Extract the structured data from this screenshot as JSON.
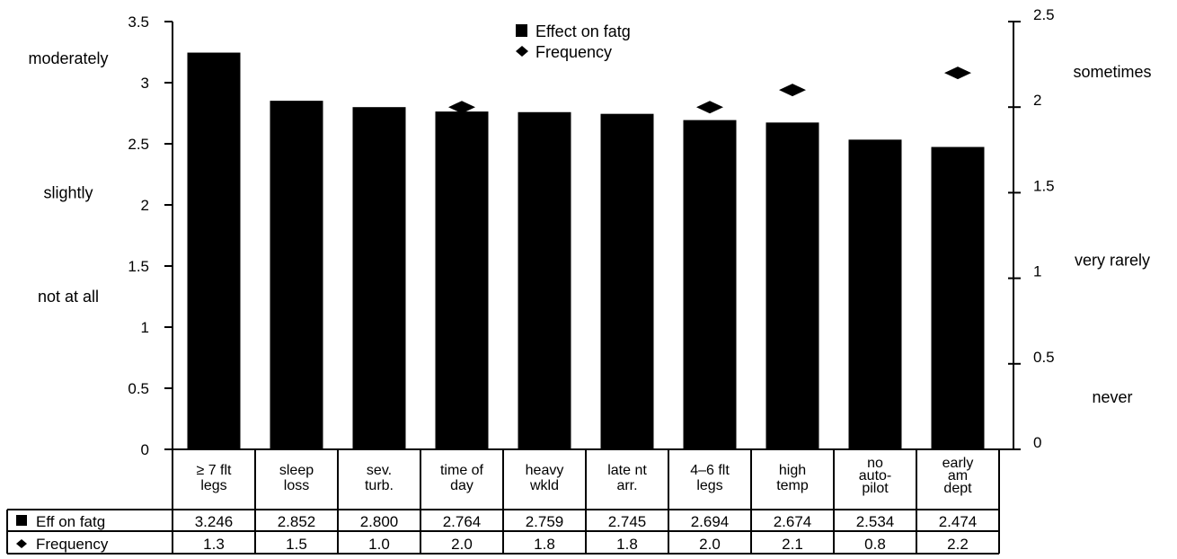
{
  "chart_data": {
    "type": "bar",
    "title": "",
    "categories": [
      [
        "≥ 7 flt",
        "legs"
      ],
      [
        "sleep",
        "loss"
      ],
      [
        "sev.",
        "turb."
      ],
      [
        "time of",
        "day"
      ],
      [
        "heavy",
        "wkld"
      ],
      [
        "late nt",
        "arr."
      ],
      [
        "4–6 flt",
        "legs"
      ],
      [
        "high",
        "temp"
      ],
      [
        "no",
        "auto-",
        "pilot"
      ],
      [
        "early",
        "am",
        "dept"
      ]
    ],
    "series": [
      {
        "name": "Effect on fatg",
        "table_label": "Eff on fatg",
        "marker": "bar",
        "axis": "left",
        "values": [
          3.246,
          2.852,
          2.8,
          2.764,
          2.759,
          2.745,
          2.694,
          2.674,
          2.534,
          2.474
        ],
        "table_values": [
          "3.246",
          "2.852",
          "2.800",
          "2.764",
          "2.759",
          "2.745",
          "2.694",
          "2.674",
          "2.534",
          "2.474"
        ]
      },
      {
        "name": "Frequency",
        "table_label": "Frequency",
        "marker": "diamond",
        "axis": "right",
        "values": [
          1.3,
          1.5,
          1.0,
          2.0,
          1.8,
          1.8,
          2.0,
          2.1,
          0.8,
          2.2
        ],
        "table_values": [
          "1.3",
          "1.5",
          "1.0",
          "2.0",
          "1.8",
          "1.8",
          "2.0",
          "2.1",
          "0.8",
          "2.2"
        ]
      }
    ],
    "left_axis": {
      "ylim": [
        0,
        3.5
      ],
      "ticks": [
        "0",
        "0.5",
        "1",
        "1.5",
        "2",
        "2.5",
        "3",
        "3.5"
      ],
      "qualitative_labels": [
        {
          "text": "not at all",
          "value": 1.25
        },
        {
          "text": "slightly",
          "value": 2.1
        },
        {
          "text": "moderately",
          "value": 3.2
        }
      ]
    },
    "right_axis": {
      "ylim": [
        0,
        2.5
      ],
      "ticks": [
        "0",
        "0.5",
        "1",
        "1.5",
        "2",
        "2.5"
      ],
      "qualitative_labels": [
        {
          "text": "never",
          "value": 0.2
        },
        {
          "text": "very rarely",
          "value": 1.0
        },
        {
          "text": "sometimes",
          "value": 2.1
        }
      ]
    },
    "legend_position": "top-center",
    "grid": false,
    "colors": {
      "bar": "#000000",
      "marker": "#000000",
      "background": "#ffffff"
    }
  }
}
